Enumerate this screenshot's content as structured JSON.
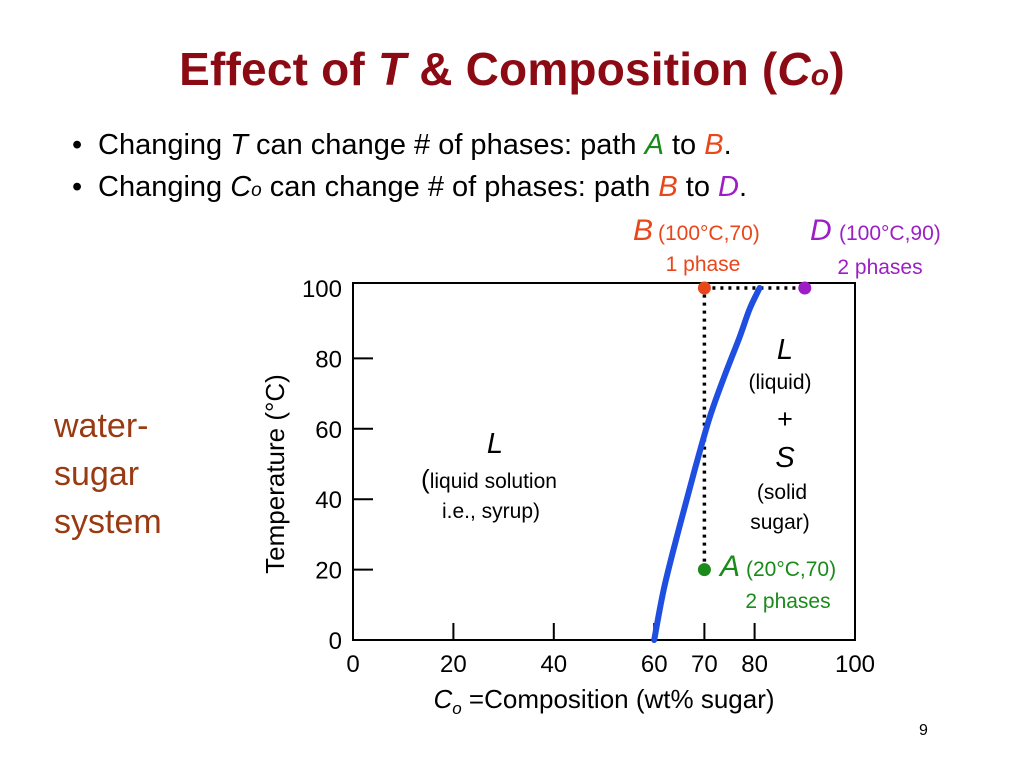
{
  "title": {
    "prefix": "Effect of ",
    "T": "T",
    "mid": " & Composition (",
    "C": "C",
    "sub": "o",
    "suffix": ")"
  },
  "bullets": [
    {
      "a": "Changing ",
      "sym": "T",
      "b": " can change # of phases:  path ",
      "p1": "A",
      "c": " to ",
      "p2": "B",
      "d": "."
    },
    {
      "a": "Changing ",
      "sym": "C",
      "sub": "o",
      "b": " can change # of phases: path ",
      "p1": "B",
      "c": " to ",
      "p2": "D",
      "d": "."
    }
  ],
  "side_label": [
    "water-",
    "sugar",
    "system"
  ],
  "page_number": "9",
  "colors": {
    "title": "#8b0a13",
    "A": "#1a8a1a",
    "B": "#e8461b",
    "D": "#9b1fc4",
    "curve": "#1f4fe0",
    "side": "#9a3a12"
  },
  "chart_data": {
    "type": "line",
    "xlabel_sym": "C",
    "xlabel_sub": "o",
    "xlabel_text": " =Composition (wt% sugar)",
    "ylabel": "Temperature (°C)",
    "xlim": [
      0,
      100
    ],
    "ylim": [
      0,
      100
    ],
    "x_ticks": [
      0,
      20,
      40,
      60,
      70,
      80,
      100
    ],
    "y_ticks": [
      0,
      20,
      40,
      60,
      80,
      100
    ],
    "series": [
      {
        "x": [
          60,
          62,
          65,
          68,
          71,
          74,
          77,
          79,
          81
        ],
        "y": [
          0,
          15,
          32,
          48,
          63,
          75,
          86,
          94,
          100
        ]
      }
    ],
    "points": [
      {
        "id": "A",
        "label": "A",
        "coord": "(20°C,70)",
        "phases": "2 phases",
        "x": 70,
        "y": 20
      },
      {
        "id": "B",
        "label": "B",
        "coord": "(100°C,70)",
        "phases": "1 phase",
        "x": 70,
        "y": 100
      },
      {
        "id": "D",
        "label": "D",
        "coord": "(100°C,90)",
        "phases": "2 phases",
        "x": 90,
        "y": 100
      }
    ],
    "paths": [
      {
        "from": "A",
        "to": "B"
      },
      {
        "from": "B",
        "to": "D"
      }
    ],
    "region_liquid": {
      "sym": "L",
      "paren": "(",
      "line1": "liquid solution",
      "line2": "i.e., syrup)"
    },
    "region_two_phase": {
      "sym_l": "L",
      "liquid": "(liquid)",
      "plus": "+",
      "sym_s": "S",
      "solid1": "(solid",
      "solid2": "sugar)"
    }
  }
}
